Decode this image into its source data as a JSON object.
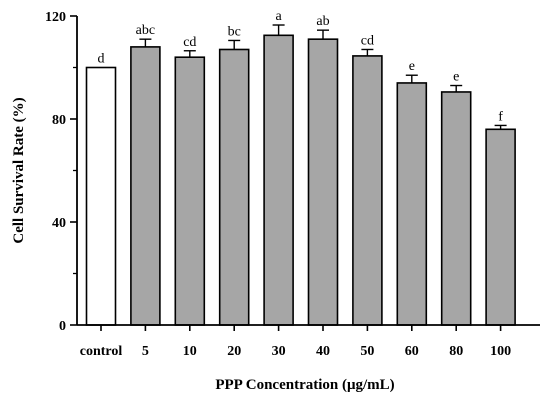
{
  "chart_data": {
    "type": "bar",
    "title": "",
    "xlabel": "PPP Concentration (μg/mL)",
    "ylabel": "Cell Survival Rate (%)",
    "ylim": [
      0,
      120
    ],
    "yticks": [
      0,
      40,
      80,
      120
    ],
    "grid": false,
    "categories": [
      "control",
      "5",
      "10",
      "20",
      "30",
      "40",
      "50",
      "60",
      "80",
      "100"
    ],
    "values": [
      100,
      108,
      104,
      107,
      112.5,
      111,
      104.5,
      94,
      90.5,
      76
    ],
    "errors": [
      0,
      3,
      2.5,
      3.5,
      4,
      3.5,
      2.5,
      3,
      2.5,
      1.5
    ],
    "significance_letters": [
      "d",
      "abc",
      "cd",
      "bc",
      "a",
      "ab",
      "cd",
      "e",
      "e",
      "f"
    ],
    "bar_fill": [
      "#ffffff",
      "#a6a6a6",
      "#a6a6a6",
      "#a6a6a6",
      "#a6a6a6",
      "#a6a6a6",
      "#a6a6a6",
      "#a6a6a6",
      "#a6a6a6",
      "#a6a6a6"
    ],
    "bar_stroke": "#000000"
  }
}
